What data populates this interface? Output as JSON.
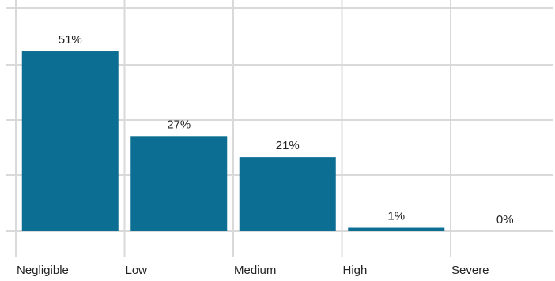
{
  "chart_data": {
    "type": "bar",
    "title": "",
    "xlabel": "",
    "ylabel": "",
    "categories": [
      "Negligible",
      "Low",
      "Medium",
      "High",
      "Severe"
    ],
    "values": [
      51,
      27,
      21,
      1,
      0
    ],
    "data_labels": [
      "51%",
      "27%",
      "21%",
      "1%",
      "0%"
    ],
    "ylim": [
      0,
      60
    ],
    "unit": "%",
    "grid": true,
    "legend": "none",
    "bar_color": "#0b6e92"
  }
}
